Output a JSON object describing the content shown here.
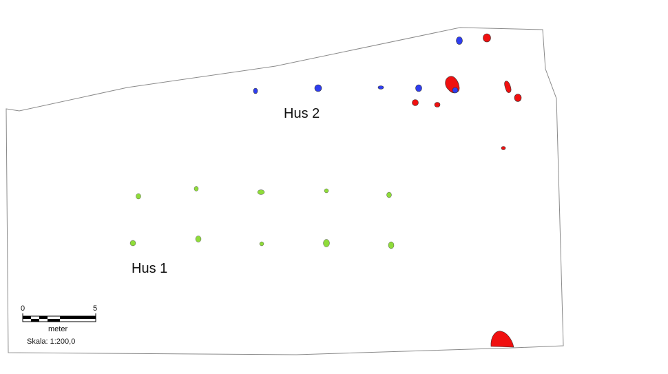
{
  "map": {
    "labels": {
      "house_2": "Hus 2",
      "house_1": "Hus 1"
    },
    "scale_bar": {
      "start_tick": "0",
      "end_tick": "5",
      "unit": "meter",
      "scale": "Skala: 1:200,0"
    },
    "colors": {
      "outline": "#8a8a8a",
      "house_1_postholes": "#8fdc3a",
      "house_2_postholes": "#2e3df0",
      "other_features": "#f01010",
      "feature_stroke": "#333333"
    }
  }
}
